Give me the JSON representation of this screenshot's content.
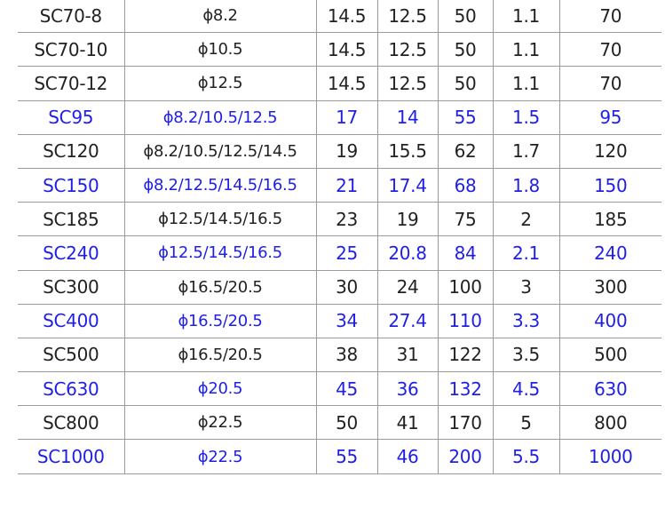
{
  "colors": {
    "highlight": "#1f1fe6",
    "normal": "#222222",
    "grid": "#9a9a9a"
  },
  "rows": [
    {
      "hl": false,
      "cells": [
        "SC70-8",
        "ϕ8.2",
        "14.5",
        "12.5",
        "50",
        "1.1",
        "70"
      ]
    },
    {
      "hl": false,
      "cells": [
        "SC70-10",
        "ϕ10.5",
        "14.5",
        "12.5",
        "50",
        "1.1",
        "70"
      ]
    },
    {
      "hl": false,
      "cells": [
        "SC70-12",
        "ϕ12.5",
        "14.5",
        "12.5",
        "50",
        "1.1",
        "70"
      ]
    },
    {
      "hl": true,
      "cells": [
        "SC95",
        "ϕ8.2/10.5/12.5",
        "17",
        "14",
        "55",
        "1.5",
        "95"
      ]
    },
    {
      "hl": false,
      "cells": [
        "SC120",
        "ϕ8.2/10.5/12.5/14.5",
        "19",
        "15.5",
        "62",
        "1.7",
        "120"
      ]
    },
    {
      "hl": true,
      "cells": [
        "SC150",
        "ϕ8.2/12.5/14.5/16.5",
        "21",
        "17.4",
        "68",
        "1.8",
        "150"
      ]
    },
    {
      "hl": false,
      "cells": [
        "SC185",
        "ϕ12.5/14.5/16.5",
        "23",
        "19",
        "75",
        "2",
        "185"
      ]
    },
    {
      "hl": true,
      "cells": [
        "SC240",
        "ϕ12.5/14.5/16.5",
        "25",
        "20.8",
        "84",
        "2.1",
        "240"
      ]
    },
    {
      "hl": false,
      "cells": [
        "SC300",
        "ϕ16.5/20.5",
        "30",
        "24",
        "100",
        "3",
        "300"
      ]
    },
    {
      "hl": true,
      "cells": [
        "SC400",
        "ϕ16.5/20.5",
        "34",
        "27.4",
        "110",
        "3.3",
        "400"
      ]
    },
    {
      "hl": false,
      "cells": [
        "SC500",
        "ϕ16.5/20.5",
        "38",
        "31",
        "122",
        "3.5",
        "500"
      ]
    },
    {
      "hl": true,
      "cells": [
        "SC630",
        "ϕ20.5",
        "45",
        "36",
        "132",
        "4.5",
        "630"
      ]
    },
    {
      "hl": false,
      "cells": [
        "SC800",
        "ϕ22.5",
        "50",
        "41",
        "170",
        "5",
        "800"
      ]
    },
    {
      "hl": true,
      "cells": [
        "SC1000",
        "ϕ22.5",
        "55",
        "46",
        "200",
        "5.5",
        "1000"
      ]
    }
  ]
}
